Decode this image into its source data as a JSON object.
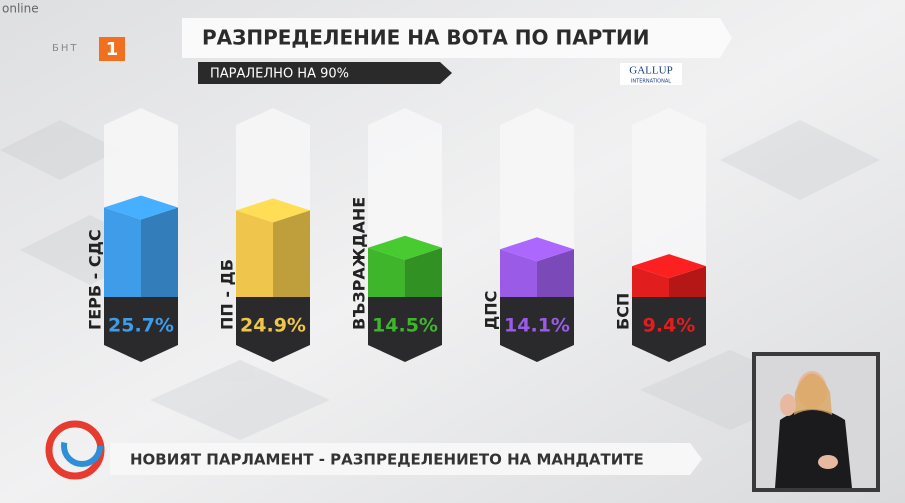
{
  "overlay": {
    "online": "online",
    "channel": "БНТ",
    "channel_number": "1",
    "source": "GALLUP",
    "source_sub": "INTERNATIONAL",
    "ticker": "НОВИЯТ ПАРЛАМЕНТ - РАЗПРЕДЕЛЕНИЕТО НА МАНДАТИТЕ"
  },
  "chart_data": {
    "type": "bar",
    "title": "РАЗПРЕДЕЛЕНИЕ НА ВОТА ПО ПАРТИИ",
    "subtitle": "ПАРАЛЕЛНО НА 90%",
    "categories": [
      "ГЕРБ - СДС",
      "ПП - ДБ",
      "ВЪЗРАЖДАНЕ",
      "ДПС",
      "БСП"
    ],
    "values": [
      25.7,
      24.9,
      14.5,
      14.1,
      9.4
    ],
    "value_labels": [
      "25.7%",
      "24.9%",
      "14.5%",
      "14.1%",
      "9.4%"
    ],
    "colors": [
      "#3f9ce8",
      "#efc54b",
      "#3fb52c",
      "#9a5ce6",
      "#e21d1d"
    ]
  }
}
